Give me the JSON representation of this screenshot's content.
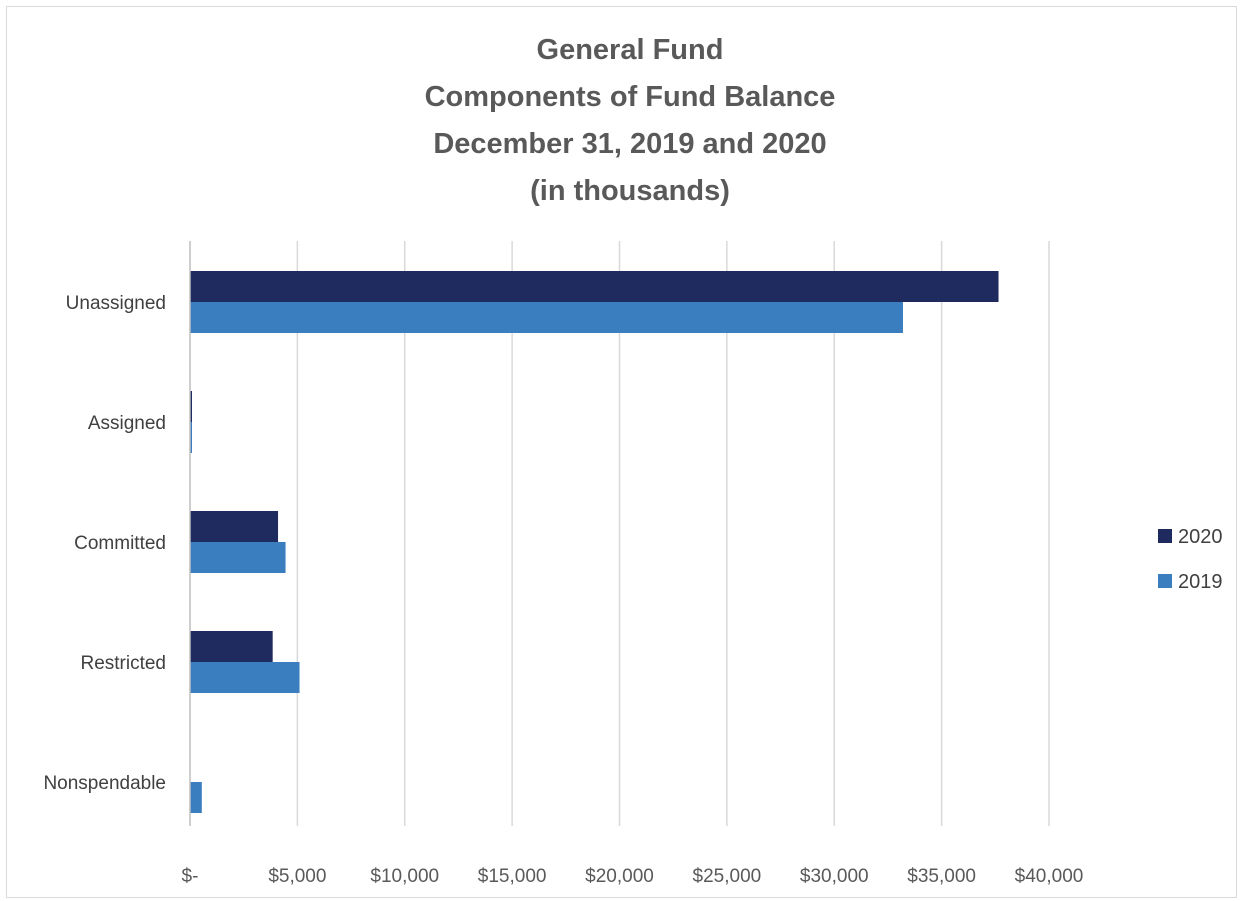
{
  "chart_data": {
    "type": "bar",
    "orientation": "horizontal",
    "title": [
      "General Fund",
      "Components of Fund Balance",
      "December 31, 2019 and 2020",
      "(in thousands)"
    ],
    "categories": [
      "Unassigned",
      "Assigned",
      "Committed",
      "Restricted",
      "Nonspendable"
    ],
    "series": [
      {
        "name": "2020",
        "color": "#1f2a5e",
        "values": [
          37650,
          70,
          4100,
          3850,
          0
        ]
      },
      {
        "name": "2019",
        "color": "#3a7ebf",
        "values": [
          33200,
          60,
          4450,
          5100,
          550
        ]
      }
    ],
    "xlim": [
      0,
      40000
    ],
    "x_ticks": [
      0,
      5000,
      10000,
      15000,
      20000,
      25000,
      30000,
      35000,
      40000
    ],
    "x_tick_labels": [
      "$-",
      "$5,000",
      "$10,000",
      "$15,000",
      "$20,000",
      "$25,000",
      "$30,000",
      "$35,000",
      "$40,000"
    ],
    "grid": true,
    "legend_position": "right"
  }
}
